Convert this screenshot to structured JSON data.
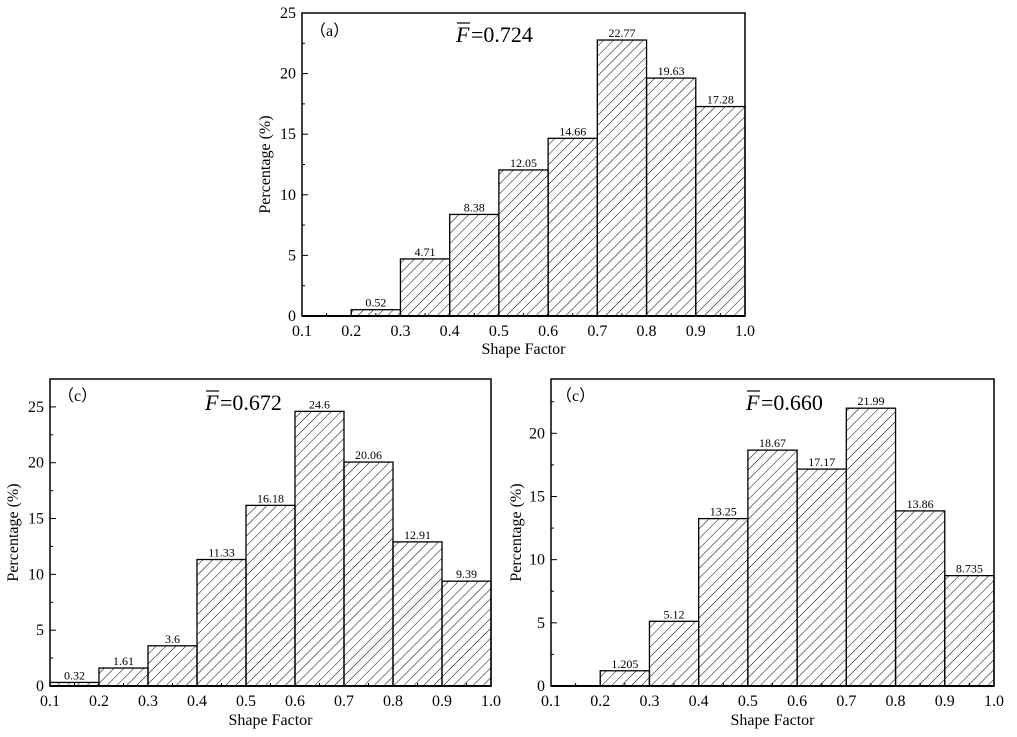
{
  "chart_data": [
    {
      "type": "bar",
      "panel_label": "（a）",
      "annotation": {
        "symbol": "F",
        "text": "=0.724"
      },
      "xlabel": "Shape Factor",
      "ylabel": "Percentage (%)",
      "xlim": [
        0.1,
        1.0
      ],
      "ylim": [
        0,
        25
      ],
      "xticks": [
        "0.1",
        "0.2",
        "0.3",
        "0.4",
        "0.5",
        "0.6",
        "0.7",
        "0.8",
        "0.9",
        "1.0"
      ],
      "yticks": [
        0,
        5,
        10,
        15,
        20,
        25
      ],
      "bins": [
        [
          0.2,
          0.3
        ],
        [
          0.3,
          0.4
        ],
        [
          0.4,
          0.5
        ],
        [
          0.5,
          0.6
        ],
        [
          0.6,
          0.7
        ],
        [
          0.7,
          0.8
        ],
        [
          0.8,
          0.9
        ],
        [
          0.9,
          1.0
        ]
      ],
      "values": [
        0.52,
        4.71,
        8.38,
        12.05,
        14.66,
        22.77,
        19.63,
        17.28
      ],
      "value_labels": [
        "0.52",
        "4.71",
        "8.38",
        "12.05",
        "14.66",
        "22.77",
        "19.63",
        "17.28"
      ]
    },
    {
      "type": "bar",
      "panel_label": "（c）",
      "annotation": {
        "symbol": "F",
        "text": "=0.672"
      },
      "xlabel": "Shape Factor",
      "ylabel": "Percentage (%)",
      "xlim": [
        0.1,
        1.0
      ],
      "ylim": [
        0,
        27.5
      ],
      "xticks": [
        "0.1",
        "0.2",
        "0.3",
        "0.4",
        "0.5",
        "0.6",
        "0.7",
        "0.8",
        "0.9",
        "1.0"
      ],
      "yticks": [
        0,
        5,
        10,
        15,
        20,
        25
      ],
      "bins": [
        [
          0.1,
          0.2
        ],
        [
          0.2,
          0.3
        ],
        [
          0.3,
          0.4
        ],
        [
          0.4,
          0.5
        ],
        [
          0.5,
          0.6
        ],
        [
          0.6,
          0.7
        ],
        [
          0.7,
          0.8
        ],
        [
          0.8,
          0.9
        ],
        [
          0.9,
          1.0
        ]
      ],
      "values": [
        0.32,
        1.61,
        3.6,
        11.33,
        16.18,
        24.6,
        20.06,
        12.91,
        9.39
      ],
      "value_labels": [
        "0.32",
        "1.61",
        "3.6",
        "11.33",
        "16.18",
        "24.6",
        "20.06",
        "12.91",
        "9.39"
      ]
    },
    {
      "type": "bar",
      "panel_label": "（c）",
      "annotation": {
        "symbol": "F",
        "text": "=0.660"
      },
      "xlabel": "Shape Factor",
      "ylabel": "Percentage (%)",
      "xlim": [
        0.1,
        1.0
      ],
      "ylim": [
        0,
        24.3
      ],
      "xticks": [
        "0.1",
        "0.2",
        "0.3",
        "0.4",
        "0.5",
        "0.6",
        "0.7",
        "0.8",
        "0.9",
        "1.0"
      ],
      "yticks": [
        0,
        5,
        10,
        15,
        20
      ],
      "bins": [
        [
          0.2,
          0.3
        ],
        [
          0.3,
          0.4
        ],
        [
          0.4,
          0.5
        ],
        [
          0.5,
          0.6
        ],
        [
          0.6,
          0.7
        ],
        [
          0.7,
          0.8
        ],
        [
          0.8,
          0.9
        ],
        [
          0.9,
          1.0
        ]
      ],
      "values": [
        1.205,
        5.12,
        13.25,
        18.67,
        17.17,
        21.99,
        13.86,
        8.735
      ],
      "value_labels": [
        "1.205",
        "5.12",
        "13.25",
        "18.67",
        "17.17",
        "21.99",
        "13.86",
        "8.735"
      ]
    }
  ]
}
